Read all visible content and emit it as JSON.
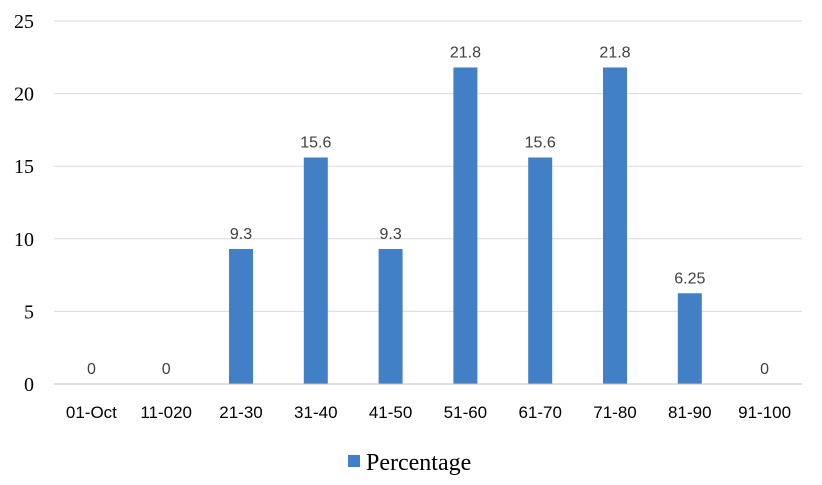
{
  "chart_data": {
    "type": "bar",
    "categories": [
      "01-Oct",
      "11-020",
      "21-30",
      "31-40",
      "41-50",
      "51-60",
      "61-70",
      "71-80",
      "81-90",
      "91-100"
    ],
    "series": [
      {
        "name": "Percentage",
        "values": [
          0,
          0,
          9.3,
          15.6,
          9.3,
          21.8,
          15.6,
          21.8,
          6.25,
          0
        ],
        "color": "#4180C7"
      }
    ],
    "data_labels": [
      "0",
      "0",
      "9.3",
      "15.6",
      "9.3",
      "21.8",
      "15.6",
      "21.8",
      "6.25",
      "0"
    ],
    "ylim": [
      0,
      25
    ],
    "yticks": [
      0,
      5,
      10,
      15,
      20,
      25
    ],
    "grid": true,
    "legend_position": "bottom",
    "gridline_color": "#D9D9D9",
    "axis_color": "#BFBFBF"
  }
}
